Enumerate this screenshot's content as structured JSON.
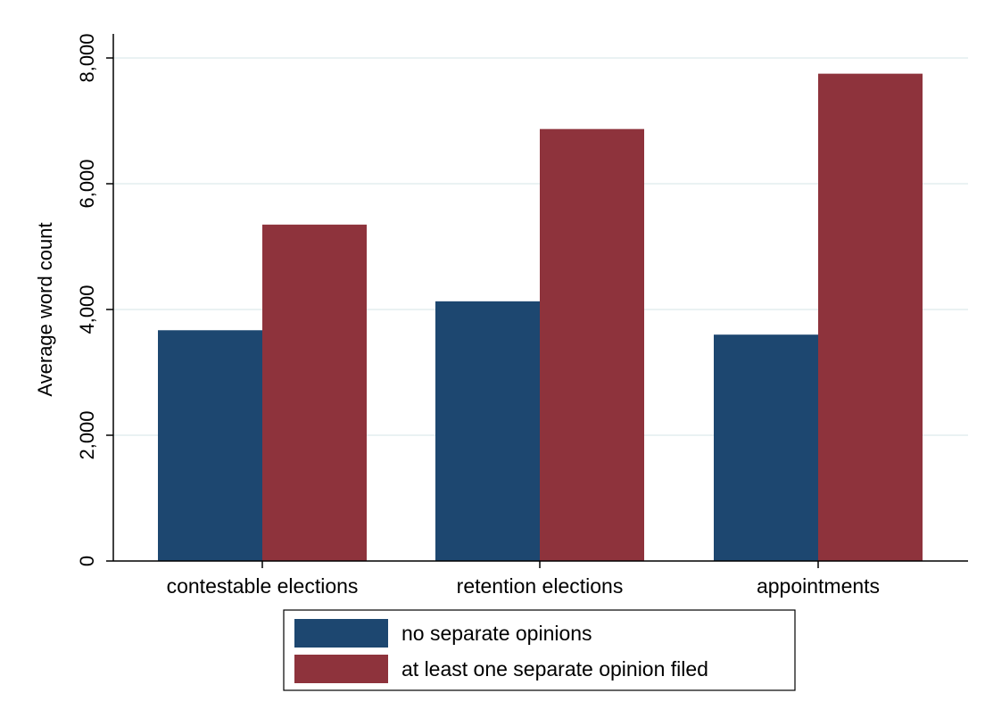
{
  "chart_data": {
    "type": "bar",
    "categories": [
      "contestable elections",
      "retention elections",
      "appointments"
    ],
    "series": [
      {
        "name": "no separate opinions",
        "values": [
          3670,
          4130,
          3600
        ],
        "color": "#1d4770"
      },
      {
        "name": "at least one separate opinion filed",
        "values": [
          5350,
          6870,
          7750
        ],
        "color": "#8e333c"
      }
    ],
    "ylabel": "Average word count",
    "xlabel": "",
    "ylim": [
      0,
      8000
    ],
    "yticks": [
      0,
      2000,
      4000,
      6000,
      8000
    ],
    "ytick_labels": [
      "0",
      "2,000",
      "4,000",
      "6,000",
      "8,000"
    ],
    "grid": true,
    "gridline_color": "#eaf2f3",
    "legend_placement": "bottom"
  }
}
